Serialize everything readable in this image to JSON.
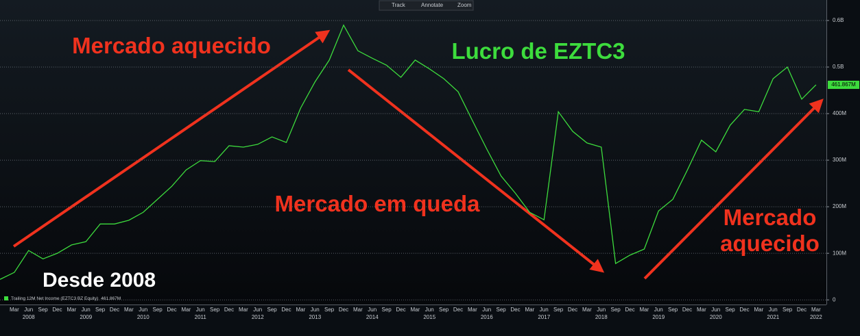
{
  "toolbar": [
    "Track",
    "Annotate",
    "Zoom"
  ],
  "chart_data": {
    "type": "line",
    "categories": [
      null,
      "Mar",
      "Jun",
      "Sep",
      "Dec",
      "Mar",
      "Jun",
      "Sep",
      "Dec",
      "Mar",
      "Jun",
      "Sep",
      "Dec",
      "Mar",
      "Jun",
      "Sep",
      "Dec",
      "Mar",
      "Jun",
      "Sep",
      "Dec",
      "Mar",
      "Jun",
      "Sep",
      "Dec",
      "Mar",
      "Jun",
      "Sep",
      "Dec",
      "Mar",
      "Jun",
      "Sep",
      "Dec",
      "Mar",
      "Jun",
      "Sep",
      "Dec",
      "Mar",
      "Jun",
      "Sep",
      "Dec",
      "Mar",
      "Jun",
      "Sep",
      "Dec",
      "Mar",
      "Jun",
      "Sep",
      "Dec",
      "Mar",
      "Jun",
      "Sep",
      "Dec",
      "Mar",
      "Jun",
      "Sep",
      "Dec",
      "Mar"
    ],
    "years": [
      "2008",
      "2009",
      "2010",
      "2011",
      "2012",
      "2013",
      "2014",
      "2015",
      "2016",
      "2017",
      "2018",
      "2019",
      "2020",
      "2021",
      "2022"
    ],
    "series": [
      {
        "name": "Trailing 12M Net Income (EZTC3 BZ Equity)",
        "color": "#3ddc3d",
        "last_value_label": "461.867M",
        "values": [
          44,
          59,
          106,
          88,
          100,
          118,
          125,
          163,
          163,
          171,
          188,
          216,
          244,
          279,
          299,
          297,
          331,
          328,
          334,
          350,
          338,
          412,
          468,
          515,
          590,
          535,
          519,
          504,
          478,
          515,
          496,
          475,
          447,
          385,
          324,
          266,
          229,
          188,
          172,
          404,
          362,
          337,
          328,
          78,
          96,
          109,
          191,
          216,
          278,
          343,
          318,
          375,
          409,
          404,
          475,
          500,
          431,
          461.867
        ]
      }
    ],
    "ylim": [
      -10,
      644
    ],
    "yticks": [
      0,
      {
        "value": 100,
        "label": "100M"
      },
      {
        "value": 200,
        "label": "200M"
      },
      {
        "value": 300,
        "label": "300M"
      },
      {
        "value": 400,
        "label": "400M"
      },
      {
        "value": 500,
        "label": "0.5B"
      },
      {
        "value": 600,
        "label": "0.6B"
      }
    ],
    "grid": true,
    "annotations": [
      {
        "text": "Mercado aquecido",
        "color": "#f0321e"
      },
      {
        "text": "Lucro de EZTC3",
        "color": "#3ddc3d"
      },
      {
        "text": "Mercado em queda",
        "color": "#f0321e"
      },
      {
        "text": "Mercado aquecido",
        "color": "#f0321e"
      },
      {
        "text": "Desde 2008",
        "color": "#ffffff"
      }
    ]
  }
}
